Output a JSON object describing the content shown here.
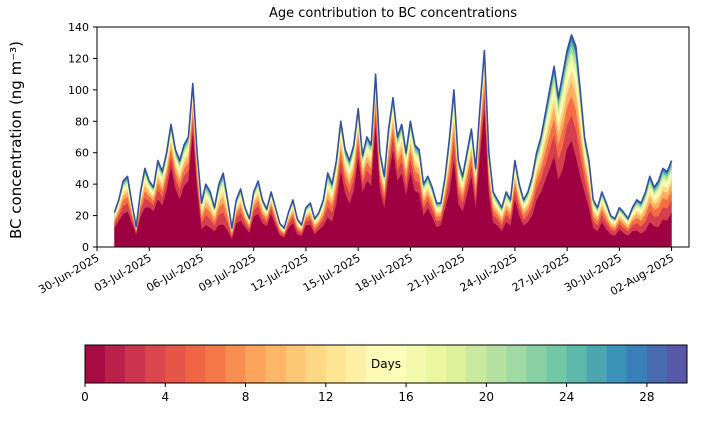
{
  "figure": {
    "background": "#ffffff",
    "axis_color": "#000000"
  },
  "chart_data": {
    "type": "area",
    "title": "Age contribution to BC concentrations",
    "ylabel": "BC concentration (ng m⁻³)",
    "xlabel": "",
    "ylim": [
      0,
      140
    ],
    "yticks": [
      0,
      20,
      40,
      60,
      80,
      100,
      120,
      140
    ],
    "xtick_labels": [
      "30-Jun-2025",
      "03-Jul-2025",
      "06-Jul-2025",
      "09-Jul-2025",
      "12-Jul-2025",
      "15-Jul-2025",
      "18-Jul-2025",
      "21-Jul-2025",
      "24-Jul-2025",
      "27-Jul-2025",
      "30-Jul-2025",
      "02-Aug-2025"
    ],
    "xtick_days": [
      0,
      3,
      6,
      9,
      12,
      15,
      18,
      21,
      24,
      27,
      30,
      33
    ],
    "x_domain": [
      0,
      34
    ],
    "x_start_day": 1.0,
    "x_step_days": 0.25,
    "grid": false,
    "legend": "none",
    "total_line_color": "#35509e",
    "total": [
      22,
      30,
      42,
      45,
      28,
      13,
      35,
      50,
      42,
      38,
      55,
      48,
      60,
      78,
      62,
      55,
      65,
      70,
      104,
      60,
      28,
      40,
      35,
      25,
      40,
      47,
      30,
      12,
      30,
      37,
      25,
      18,
      35,
      42,
      30,
      24,
      35,
      25,
      15,
      12,
      22,
      30,
      18,
      14,
      25,
      28,
      18,
      22,
      30,
      47,
      40,
      55,
      80,
      62,
      55,
      65,
      88,
      58,
      70,
      65,
      110,
      60,
      45,
      75,
      95,
      70,
      78,
      60,
      80,
      65,
      62,
      40,
      45,
      38,
      28,
      28,
      45,
      70,
      100,
      55,
      45,
      60,
      75,
      50,
      90,
      125,
      60,
      35,
      30,
      25,
      35,
      30,
      55,
      40,
      30,
      35,
      45,
      60,
      70,
      85,
      100,
      115,
      95,
      110,
      125,
      135,
      128,
      100,
      70,
      55,
      30,
      25,
      35,
      28,
      20,
      18,
      25,
      22,
      18,
      25,
      30,
      28,
      35,
      45,
      38,
      42,
      50,
      48,
      55
    ],
    "young_share": [
      0.55,
      0.55,
      0.5,
      0.5,
      0.55,
      0.6,
      0.55,
      0.5,
      0.6,
      0.6,
      0.55,
      0.55,
      0.6,
      0.65,
      0.6,
      0.55,
      0.6,
      0.6,
      0.7,
      0.6,
      0.4,
      0.35,
      0.35,
      0.4,
      0.35,
      0.3,
      0.35,
      0.4,
      0.5,
      0.45,
      0.5,
      0.5,
      0.55,
      0.5,
      0.5,
      0.55,
      0.6,
      0.55,
      0.5,
      0.5,
      0.55,
      0.5,
      0.45,
      0.5,
      0.55,
      0.5,
      0.45,
      0.5,
      0.45,
      0.4,
      0.4,
      0.5,
      0.6,
      0.55,
      0.5,
      0.55,
      0.65,
      0.6,
      0.6,
      0.6,
      0.7,
      0.6,
      0.55,
      0.6,
      0.65,
      0.6,
      0.6,
      0.55,
      0.6,
      0.55,
      0.55,
      0.5,
      0.55,
      0.5,
      0.45,
      0.5,
      0.55,
      0.5,
      0.55,
      0.5,
      0.5,
      0.55,
      0.6,
      0.5,
      0.65,
      0.7,
      0.55,
      0.45,
      0.45,
      0.4,
      0.45,
      0.45,
      0.55,
      0.5,
      0.45,
      0.45,
      0.45,
      0.5,
      0.5,
      0.5,
      0.5,
      0.5,
      0.45,
      0.45,
      0.5,
      0.5,
      0.45,
      0.45,
      0.5,
      0.45,
      0.4,
      0.4,
      0.45,
      0.4,
      0.4,
      0.4,
      0.45,
      0.4,
      0.4,
      0.4,
      0.35,
      0.3,
      0.3,
      0.35,
      0.35,
      0.3,
      0.35,
      0.35,
      0.4
    ],
    "age_layer_weights": [
      0.24,
      0.18,
      0.14,
      0.11,
      0.09,
      0.07,
      0.06,
      0.05,
      0.03,
      0.03
    ],
    "spectral_colors": [
      "#9e0142",
      "#d53e4f",
      "#f46d43",
      "#fdae61",
      "#fee08b",
      "#ffffbf",
      "#e6f598",
      "#abdda4",
      "#66c2a5",
      "#3288bd",
      "#5e4fa2"
    ],
    "colorbar": {
      "label": "Days",
      "min": 0,
      "max": 30,
      "ticks": [
        0,
        4,
        8,
        12,
        16,
        20,
        24,
        28
      ],
      "cells": 30
    }
  }
}
